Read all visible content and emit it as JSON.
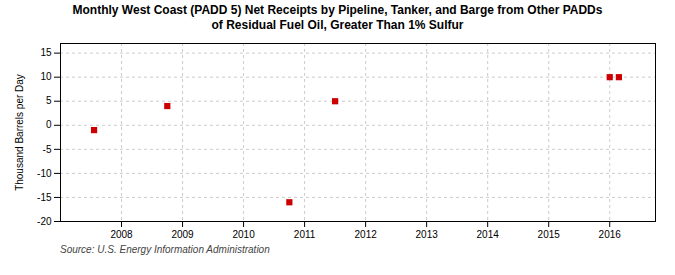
{
  "chart_data": {
    "type": "scatter",
    "title": "Monthly West Coast (PADD 5) Net Receipts by Pipeline, Tanker, and Barge from Other PADDs",
    "subtitle": "of Residual Fuel Oil, Greater Than 1% Sulfur",
    "ylabel": "Thousand Barrels per Day",
    "source": "Source: U.S. Energy Information Administration",
    "x": [
      2007.55,
      2008.75,
      2010.75,
      2011.5,
      2016.0,
      2016.15
    ],
    "values": [
      -1,
      4,
      -16,
      5,
      10,
      10
    ],
    "color": "#cc0000",
    "marker": "square",
    "xlim": [
      2007.0,
      2016.75
    ],
    "ylim": [
      -20,
      17
    ],
    "xticks": [
      2008,
      2009,
      2010,
      2011,
      2012,
      2013,
      2014,
      2015,
      2016
    ],
    "yticks": [
      -20,
      -15,
      -10,
      -5,
      0,
      5,
      10,
      15
    ],
    "grid": true
  }
}
